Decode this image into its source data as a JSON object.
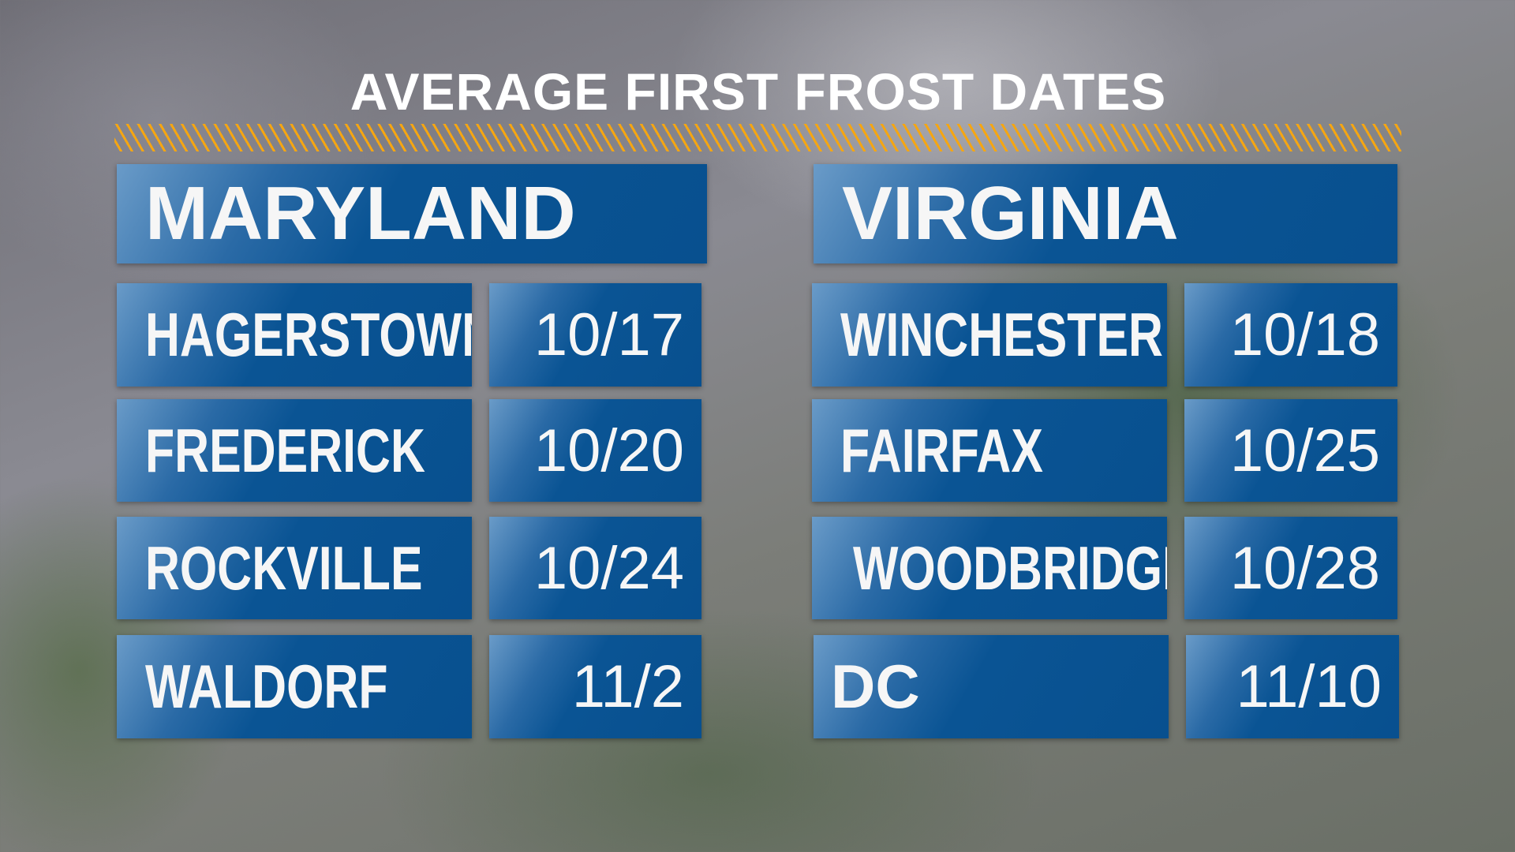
{
  "title": "AVERAGE FIRST FROST DATES",
  "colors": {
    "panel_blue": "#08508f",
    "stripe_orange": "#f5a612",
    "text": "#f6f6f6"
  },
  "maryland": {
    "header": "MARYLAND",
    "rows": [
      {
        "city": "HAGERSTOWN",
        "date": "10/17"
      },
      {
        "city": "FREDERICK",
        "date": "10/20"
      },
      {
        "city": "ROCKVILLE",
        "date": "10/24"
      },
      {
        "city": "WALDORF",
        "date": "11/2"
      }
    ]
  },
  "virginia": {
    "header": "VIRGINIA",
    "rows": [
      {
        "city": "WINCHESTER",
        "date": "10/18"
      },
      {
        "city": "FAIRFAX",
        "date": "10/25"
      },
      {
        "city": "WOODBRIDGE",
        "date": "10/28"
      },
      {
        "city": "DC",
        "date": "11/10"
      }
    ]
  }
}
